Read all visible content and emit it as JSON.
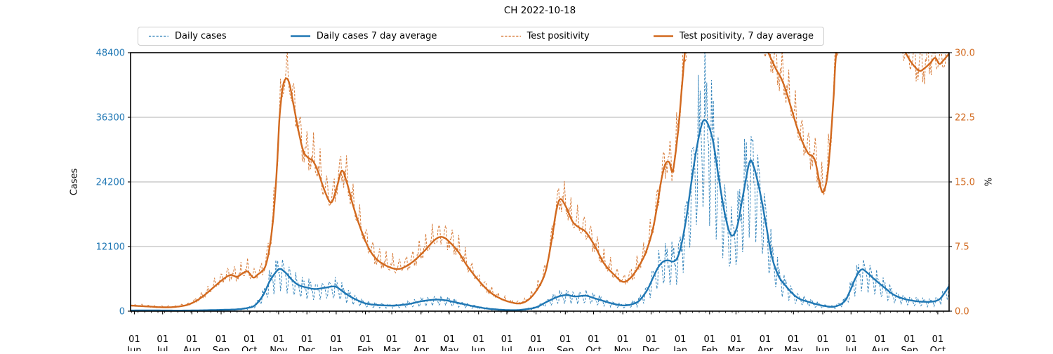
{
  "title": "CH 2022-10-18",
  "colors": {
    "blue": "#1f77b4",
    "orange": "#d2691e",
    "grid": "#b0b0b0",
    "spine": "#000000",
    "legend_border": "#cccccc"
  },
  "legend": {
    "items": [
      {
        "label": "Daily cases",
        "color_ref": "blue",
        "style": "dashed"
      },
      {
        "label": "Daily cases 7 day average",
        "color_ref": "blue",
        "style": "solid"
      },
      {
        "label": "Test positivity",
        "color_ref": "orange",
        "style": "dashed"
      },
      {
        "label": "Test positivity, 7 day average",
        "color_ref": "orange",
        "style": "solid"
      }
    ]
  },
  "axes": {
    "left": {
      "label": "Cases",
      "max": 48400,
      "tick_values": [
        0,
        12100,
        24200,
        36300,
        48400
      ],
      "tick_labels": [
        "0",
        "12100",
        "24200",
        "36300",
        "48400"
      ],
      "color_ref": "blue",
      "grid_values": [
        12100,
        24200,
        36300
      ]
    },
    "right": {
      "label": "%",
      "max": 30,
      "tick_values": [
        0,
        7.5,
        15,
        22.5,
        30
      ],
      "tick_labels": [
        "0.0",
        "7.5",
        "15.0",
        "22.5",
        "30.0"
      ],
      "color_ref": "orange"
    },
    "x": {
      "domain_days": 868,
      "minor_step_days": 7,
      "major_ticks": [
        {
          "t": 0.0046,
          "l1": "01",
          "l2": "Jun"
        },
        {
          "t": 0.0392,
          "l1": "01",
          "l2": "Jul"
        },
        {
          "t": 0.0749,
          "l1": "01",
          "l2": "Aug"
        },
        {
          "t": 0.1106,
          "l1": "01",
          "l2": "Sep"
        },
        {
          "t": 0.1452,
          "l1": "01",
          "l2": "Oct"
        },
        {
          "t": 0.1809,
          "l1": "01",
          "l2": "Nov"
        },
        {
          "t": 0.2154,
          "l1": "01",
          "l2": "Dec"
        },
        {
          "t": 0.2512,
          "l1": "01",
          "l2": "Jan"
        },
        {
          "t": 0.2869,
          "l1": "01",
          "l2": "Feb"
        },
        {
          "t": 0.3191,
          "l1": "01",
          "l2": "Mar"
        },
        {
          "t": 0.3548,
          "l1": "01",
          "l2": "Apr"
        },
        {
          "t": 0.3894,
          "l1": "01",
          "l2": "May"
        },
        {
          "t": 0.4251,
          "l1": "01",
          "l2": "Jun"
        },
        {
          "t": 0.4597,
          "l1": "01",
          "l2": "Jul"
        },
        {
          "t": 0.4954,
          "l1": "01",
          "l2": "Aug"
        },
        {
          "t": 0.5311,
          "l1": "01",
          "l2": "Sep"
        },
        {
          "t": 0.5656,
          "l1": "01",
          "l2": "Oct"
        },
        {
          "t": 0.6014,
          "l1": "01",
          "l2": "Nov"
        },
        {
          "t": 0.6359,
          "l1": "01",
          "l2": "Dec"
        },
        {
          "t": 0.6716,
          "l1": "01",
          "l2": "Jan"
        },
        {
          "t": 0.7074,
          "l1": "01",
          "l2": "Feb"
        },
        {
          "t": 0.7396,
          "l1": "01",
          "l2": "Mar"
        },
        {
          "t": 0.7753,
          "l1": "01",
          "l2": "Apr"
        },
        {
          "t": 0.8099,
          "l1": "01",
          "l2": "May"
        },
        {
          "t": 0.8456,
          "l1": "01",
          "l2": "Jun"
        },
        {
          "t": 0.8802,
          "l1": "01",
          "l2": "Jul"
        },
        {
          "t": 0.9159,
          "l1": "01",
          "l2": "Aug"
        },
        {
          "t": 0.9516,
          "l1": "01",
          "l2": "Sep"
        },
        {
          "t": 0.9862,
          "l1": "01",
          "l2": "Oct"
        }
      ]
    }
  },
  "chart_data": {
    "type": "line",
    "x_domain": [
      "2020-05-28",
      "2022-10-13"
    ],
    "note": "t = fraction of x-axis; daily series are the 7-day-average series modulated by the weekly reporting pattern; right-axis values above 30 are clipped by the plot box",
    "series": [
      {
        "name": "Daily cases",
        "axis": "left",
        "style": "dashed",
        "color_ref": "blue",
        "derived_from": 1,
        "weekly_pattern": [
          1.32,
          1.12,
          1.18,
          0.96,
          0.86,
          0.52,
          0.68
        ],
        "jitter_pattern": [
          1.0,
          0.93,
          1.06,
          0.97,
          1.08,
          0.92,
          1.03,
          0.96,
          1.05,
          0.9,
          1.04
        ]
      },
      {
        "name": "Daily cases 7 day average",
        "axis": "left",
        "style": "solid",
        "color_ref": "blue",
        "points": [
          [
            0.0,
            120
          ],
          [
            0.02,
            140
          ],
          [
            0.04,
            120
          ],
          [
            0.06,
            110
          ],
          [
            0.08,
            140
          ],
          [
            0.1,
            200
          ],
          [
            0.115,
            260
          ],
          [
            0.13,
            340
          ],
          [
            0.143,
            600
          ],
          [
            0.152,
            1100
          ],
          [
            0.162,
            3000
          ],
          [
            0.17,
            5600
          ],
          [
            0.178,
            7400
          ],
          [
            0.183,
            7900
          ],
          [
            0.19,
            7100
          ],
          [
            0.197,
            5900
          ],
          [
            0.205,
            4900
          ],
          [
            0.216,
            4400
          ],
          [
            0.226,
            4150
          ],
          [
            0.238,
            4400
          ],
          [
            0.25,
            4600
          ],
          [
            0.26,
            3600
          ],
          [
            0.27,
            2600
          ],
          [
            0.286,
            1500
          ],
          [
            0.302,
            1150
          ],
          [
            0.322,
            1050
          ],
          [
            0.34,
            1350
          ],
          [
            0.357,
            1900
          ],
          [
            0.372,
            2150
          ],
          [
            0.384,
            2050
          ],
          [
            0.4,
            1550
          ],
          [
            0.418,
            950
          ],
          [
            0.435,
            500
          ],
          [
            0.452,
            270
          ],
          [
            0.468,
            180
          ],
          [
            0.48,
            300
          ],
          [
            0.495,
            700
          ],
          [
            0.508,
            1700
          ],
          [
            0.522,
            2700
          ],
          [
            0.533,
            3000
          ],
          [
            0.543,
            2750
          ],
          [
            0.556,
            2900
          ],
          [
            0.565,
            2500
          ],
          [
            0.578,
            1900
          ],
          [
            0.592,
            1300
          ],
          [
            0.605,
            1080
          ],
          [
            0.618,
            1600
          ],
          [
            0.625,
            2600
          ],
          [
            0.632,
            4200
          ],
          [
            0.639,
            6500
          ],
          [
            0.645,
            8300
          ],
          [
            0.651,
            9300
          ],
          [
            0.657,
            9500
          ],
          [
            0.663,
            9300
          ],
          [
            0.668,
            10000
          ],
          [
            0.673,
            12500
          ],
          [
            0.679,
            17500
          ],
          [
            0.685,
            24000
          ],
          [
            0.691,
            30000
          ],
          [
            0.697,
            34500
          ],
          [
            0.701,
            35800
          ],
          [
            0.706,
            34800
          ],
          [
            0.712,
            31500
          ],
          [
            0.719,
            24500
          ],
          [
            0.727,
            17500
          ],
          [
            0.734,
            14200
          ],
          [
            0.741,
            15800
          ],
          [
            0.748,
            21500
          ],
          [
            0.756,
            27800
          ],
          [
            0.761,
            27200
          ],
          [
            0.768,
            23000
          ],
          [
            0.776,
            16500
          ],
          [
            0.783,
            10500
          ],
          [
            0.791,
            6800
          ],
          [
            0.8,
            4800
          ],
          [
            0.814,
            2600
          ],
          [
            0.829,
            1700
          ],
          [
            0.845,
            1050
          ],
          [
            0.86,
            850
          ],
          [
            0.872,
            1800
          ],
          [
            0.879,
            3800
          ],
          [
            0.886,
            6300
          ],
          [
            0.893,
            7800
          ],
          [
            0.9,
            7200
          ],
          [
            0.907,
            6200
          ],
          [
            0.914,
            5300
          ],
          [
            0.922,
            4300
          ],
          [
            0.932,
            3100
          ],
          [
            0.945,
            2300
          ],
          [
            0.958,
            1900
          ],
          [
            0.97,
            1750
          ],
          [
            0.98,
            1800
          ],
          [
            0.988,
            2200
          ],
          [
            0.994,
            3300
          ],
          [
            1.0,
            4700
          ]
        ]
      },
      {
        "name": "Test positivity",
        "axis": "right",
        "style": "dashed",
        "color_ref": "orange",
        "derived_from": 3,
        "amp_damp": 15,
        "weekly_pattern": [
          0.88,
          0.95,
          0.9,
          1.04,
          1.12,
          1.35,
          1.18
        ],
        "jitter_pattern": [
          1.0,
          1.05,
          0.94,
          1.07,
          0.96,
          1.02,
          0.9,
          1.06,
          0.95,
          1.04,
          0.97
        ]
      },
      {
        "name": "Test positivity, 7 day average",
        "axis": "right",
        "style": "solid",
        "color_ref": "orange",
        "points": [
          [
            0.0,
            0.65
          ],
          [
            0.02,
            0.55
          ],
          [
            0.04,
            0.45
          ],
          [
            0.055,
            0.5
          ],
          [
            0.07,
            0.75
          ],
          [
            0.082,
            1.3
          ],
          [
            0.092,
            2.0
          ],
          [
            0.103,
            2.9
          ],
          [
            0.113,
            3.7
          ],
          [
            0.122,
            4.2
          ],
          [
            0.13,
            4.0
          ],
          [
            0.137,
            4.4
          ],
          [
            0.143,
            4.6
          ],
          [
            0.15,
            3.9
          ],
          [
            0.156,
            4.3
          ],
          [
            0.16,
            4.6
          ],
          [
            0.165,
            5.3
          ],
          [
            0.17,
            7.5
          ],
          [
            0.175,
            11.5
          ],
          [
            0.179,
            17.0
          ],
          [
            0.182,
            22.5
          ],
          [
            0.186,
            26.0
          ],
          [
            0.19,
            27.0
          ],
          [
            0.194,
            26.4
          ],
          [
            0.199,
            24.0
          ],
          [
            0.205,
            21.0
          ],
          [
            0.211,
            18.6
          ],
          [
            0.217,
            17.8
          ],
          [
            0.223,
            17.4
          ],
          [
            0.229,
            16.2
          ],
          [
            0.237,
            14.0
          ],
          [
            0.245,
            12.6
          ],
          [
            0.252,
            14.4
          ],
          [
            0.258,
            16.3
          ],
          [
            0.264,
            15.0
          ],
          [
            0.272,
            12.2
          ],
          [
            0.281,
            9.6
          ],
          [
            0.291,
            7.3
          ],
          [
            0.301,
            6.0
          ],
          [
            0.314,
            5.2
          ],
          [
            0.328,
            4.9
          ],
          [
            0.343,
            5.6
          ],
          [
            0.358,
            6.9
          ],
          [
            0.372,
            8.3
          ],
          [
            0.381,
            8.6
          ],
          [
            0.39,
            8.0
          ],
          [
            0.401,
            6.8
          ],
          [
            0.411,
            5.3
          ],
          [
            0.424,
            3.7
          ],
          [
            0.438,
            2.3
          ],
          [
            0.451,
            1.5
          ],
          [
            0.464,
            1.05
          ],
          [
            0.476,
            0.9
          ],
          [
            0.487,
            1.4
          ],
          [
            0.498,
            2.7
          ],
          [
            0.507,
            4.6
          ],
          [
            0.514,
            8.0
          ],
          [
            0.52,
            11.6
          ],
          [
            0.525,
            13.0
          ],
          [
            0.532,
            12.1
          ],
          [
            0.54,
            10.4
          ],
          [
            0.548,
            9.7
          ],
          [
            0.556,
            9.2
          ],
          [
            0.567,
            7.6
          ],
          [
            0.578,
            5.6
          ],
          [
            0.59,
            4.3
          ],
          [
            0.602,
            3.4
          ],
          [
            0.613,
            4.1
          ],
          [
            0.625,
            5.9
          ],
          [
            0.632,
            7.5
          ],
          [
            0.638,
            9.5
          ],
          [
            0.643,
            12.0
          ],
          [
            0.648,
            15.0
          ],
          [
            0.653,
            17.0
          ],
          [
            0.658,
            17.3
          ],
          [
            0.662,
            16.2
          ],
          [
            0.666,
            18.5
          ],
          [
            0.67,
            22.0
          ],
          [
            0.674,
            26.5
          ],
          [
            0.678,
            30.5
          ],
          [
            0.685,
            33.0
          ],
          [
            0.7,
            35.0
          ],
          [
            0.72,
            35.5
          ],
          [
            0.745,
            33.5
          ],
          [
            0.765,
            31.8
          ],
          [
            0.776,
            30.5
          ],
          [
            0.783,
            29.2
          ],
          [
            0.789,
            28.0
          ],
          [
            0.795,
            27.0
          ],
          [
            0.801,
            25.5
          ],
          [
            0.808,
            23.3
          ],
          [
            0.814,
            21.4
          ],
          [
            0.821,
            19.6
          ],
          [
            0.828,
            18.3
          ],
          [
            0.833,
            18.0
          ],
          [
            0.837,
            17.2
          ],
          [
            0.842,
            14.8
          ],
          [
            0.846,
            13.8
          ],
          [
            0.851,
            15.5
          ],
          [
            0.855,
            19.5
          ],
          [
            0.859,
            25.0
          ],
          [
            0.863,
            30.5
          ],
          [
            0.875,
            34.5
          ],
          [
            0.9,
            36.0
          ],
          [
            0.925,
            34.0
          ],
          [
            0.94,
            31.5
          ],
          [
            0.948,
            29.8
          ],
          [
            0.956,
            28.6
          ],
          [
            0.964,
            27.9
          ],
          [
            0.97,
            28.2
          ],
          [
            0.977,
            28.8
          ],
          [
            0.983,
            29.4
          ],
          [
            0.988,
            28.7
          ],
          [
            0.993,
            29.1
          ],
          [
            1.0,
            29.9
          ]
        ]
      }
    ]
  }
}
